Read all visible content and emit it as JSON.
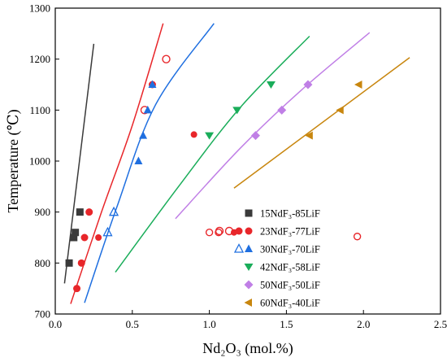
{
  "chart_data": {
    "type": "scatter",
    "xlabel": "Nd₂O₃ (mol.%)",
    "ylabel": "Temperature (℃)",
    "xlim": [
      0,
      2.5
    ],
    "ylim": [
      700,
      1300
    ],
    "xticks": [
      "0.0",
      "0.5",
      "1.0",
      "1.5",
      "2.0",
      "2.5"
    ],
    "yticks": [
      "700",
      "800",
      "900",
      "1000",
      "1100",
      "1200",
      "1300"
    ],
    "grid": false,
    "legend_position": "bottom-right",
    "series": [
      {
        "name": "15NdF₃-85LiF",
        "color": "#3a3a3a",
        "marker": "square",
        "points": [
          [
            0.09,
            800
          ],
          [
            0.12,
            850
          ],
          [
            0.13,
            860
          ],
          [
            0.16,
            900
          ]
        ],
        "fit_line": [
          [
            0.06,
            760
          ],
          [
            0.25,
            1230
          ]
        ]
      },
      {
        "name": "23NdF₃-77LiF",
        "color": "#e8262a",
        "marker": "circle",
        "points": [
          [
            0.14,
            750
          ],
          [
            0.17,
            800
          ],
          [
            0.19,
            850
          ],
          [
            0.22,
            900
          ],
          [
            0.58,
            1100
          ],
          [
            0.63,
            1150
          ],
          [
            0.72,
            1200
          ]
        ],
        "open_points": [
          [
            0.58,
            1100
          ],
          [
            0.72,
            1200
          ]
        ],
        "fit_line": [
          [
            0.1,
            720
          ],
          [
            0.3,
            900
          ],
          [
            0.5,
            1070
          ],
          [
            0.7,
            1270
          ]
        ]
      },
      {
        "name": "30NdF₃-70LiF",
        "color": "#1f6fe0",
        "marker": "triangle-up",
        "points": [
          [
            0.34,
            860
          ],
          [
            0.38,
            900
          ],
          [
            0.54,
            1000
          ],
          [
            0.57,
            1050
          ],
          [
            0.6,
            1100
          ],
          [
            0.63,
            1150
          ]
        ],
        "open_points": [
          [
            0.34,
            860
          ],
          [
            0.38,
            900
          ]
        ],
        "fit_line": [
          [
            0.19,
            722
          ],
          [
            0.4,
            910
          ],
          [
            0.65,
            1110
          ],
          [
            1.03,
            1270
          ]
        ]
      },
      {
        "name": "42NdF₃-58LiF",
        "color": "#1aad5a",
        "marker": "triangle-down",
        "points": [
          [
            1.0,
            1050
          ],
          [
            1.18,
            1100
          ],
          [
            1.4,
            1150
          ]
        ],
        "fit_line": [
          [
            0.39,
            782
          ],
          [
            0.8,
            950
          ],
          [
            1.2,
            1105
          ],
          [
            1.65,
            1245
          ]
        ]
      },
      {
        "name": "50NdF₃-50LiF",
        "color": "#c07fe6",
        "marker": "diamond",
        "points": [
          [
            1.3,
            1050
          ],
          [
            1.47,
            1100
          ],
          [
            1.64,
            1150
          ]
        ],
        "fit_line": [
          [
            0.78,
            887
          ],
          [
            1.2,
            1025
          ],
          [
            1.6,
            1140
          ],
          [
            2.04,
            1252
          ]
        ]
      },
      {
        "name": "60NdF₃-40LiF",
        "color": "#c8860e",
        "marker": "triangle-left",
        "points": [
          [
            1.65,
            1050
          ],
          [
            1.85,
            1100
          ],
          [
            1.97,
            1150
          ]
        ],
        "fit_line": [
          [
            1.16,
            947
          ],
          [
            2.3,
            1203
          ]
        ]
      }
    ],
    "extra_red_points": {
      "filled": [
        [
          0.28,
          850
        ],
        [
          0.9,
          1052
        ],
        [
          1.16,
          860
        ]
      ],
      "open": [
        [
          1.0,
          860
        ],
        [
          1.06,
          860
        ],
        [
          1.96,
          852
        ]
      ]
    },
    "legend": [
      {
        "label": "15NdF₃-85LiF"
      },
      {
        "label": "23NdF₃-77LiF"
      },
      {
        "label": "30NdF₃-70LiF"
      },
      {
        "label": "42NdF₃-58LiF"
      },
      {
        "label": "50NdF₃-50LiF"
      },
      {
        "label": "60NdF₃-40LiF"
      }
    ]
  }
}
